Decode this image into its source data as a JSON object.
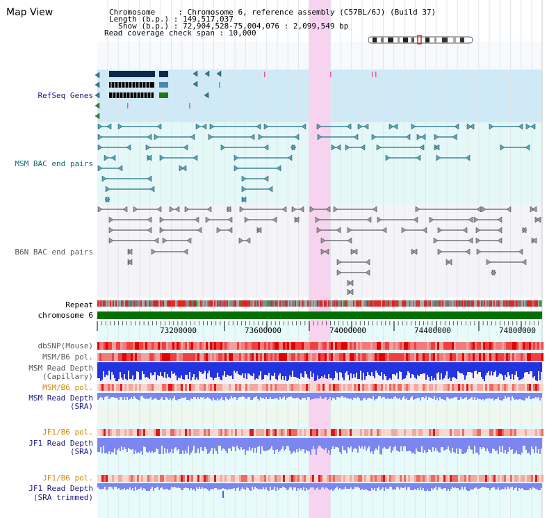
{
  "view": {
    "title": "Map View"
  },
  "info": {
    "chromosome_key": "Chromosome",
    "chromosome_value": "Chromosome 6, reference assembly (C57BL/6J) (Build 37)",
    "length_key": "Length (b.p.)",
    "length_value": "149,517,037",
    "show_key": "Show (b.p.)",
    "show_value": "72,904,528-75,004,076 : 2,099,549 bp",
    "coverage_key": "Read coverage check span",
    "coverage_value": "10,000"
  },
  "tracks": {
    "refseq": "RefSeq Genes",
    "msm_bac": "MSM BAC end pairs",
    "b6n_bac": "B6N BAC end pairs",
    "repeat": "Repeat",
    "chromosome": "chromosome 6",
    "dbsnp": "dbSNP(Mouse)",
    "msm_b6_pol": "MSM/B6 pol.",
    "msm_depth_cap_1": "MSM Read Depth",
    "msm_depth_cap_2": "(Capillary)",
    "msm_b6_pol_sra": "MSM/B6 pol.",
    "msm_depth_sra_1": "MSM Read Depth",
    "msm_depth_sra_2": "(SRA)",
    "jf1_b6_pol": "JF1/B6 pol.",
    "jf1_depth_sra_1": "JF1 Read Depth",
    "jf1_depth_sra_2": "(SRA)",
    "jf1_b6_pol_trim": "JF1/B6 pol.",
    "jf1_depth_trim_1": "JF1 Read Depth",
    "jf1_depth_trim_2": "(SRA trimmed)"
  },
  "axis": {
    "ticks": [
      "73200000",
      "73600000",
      "74000000",
      "74400000",
      "74800000"
    ]
  },
  "colors": {
    "refseq_band": "#cfeaf6",
    "msm_band": "#e4f8f8",
    "b6n_band": "#f4f4f8",
    "highlight": "#f7d3f0",
    "chromosome_bar": "#007000",
    "label_navy": "#1a1a8a",
    "label_teal": "#0f6a80",
    "label_gray": "#5a5a5a",
    "label_orange": "#d8860a",
    "depth_blue": "#2233e0",
    "depth_lightblue": "#7c86f0"
  }
}
